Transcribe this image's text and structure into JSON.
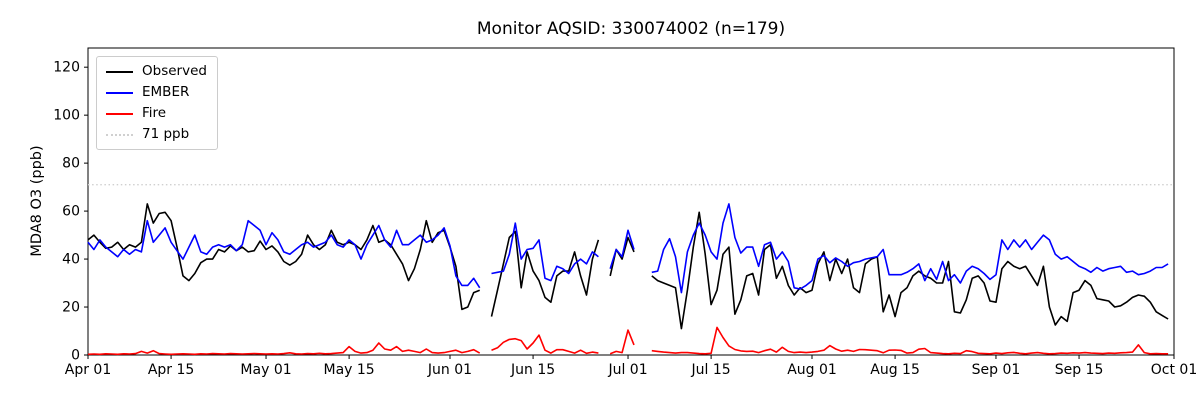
{
  "chart_data": {
    "type": "line",
    "title": "Monitor AQSID: 330074002 (n=179)",
    "xlabel": "",
    "ylabel": "MDA8 O3 (ppb)",
    "n_points": 179,
    "ylim": [
      0,
      128
    ],
    "yticks": [
      0,
      20,
      40,
      60,
      80,
      100,
      120
    ],
    "x_span_days": 183,
    "x_start": "Apr 01",
    "x_end": "Oct 01",
    "grid": false,
    "legend_position": "upper left",
    "xticks": [
      {
        "day": 0,
        "label": "Apr 01"
      },
      {
        "day": 14,
        "label": "Apr 15"
      },
      {
        "day": 30,
        "label": "May 01"
      },
      {
        "day": 44,
        "label": "May 15"
      },
      {
        "day": 61,
        "label": "Jun 01"
      },
      {
        "day": 75,
        "label": "Jun 15"
      },
      {
        "day": 91,
        "label": "Jul 01"
      },
      {
        "day": 105,
        "label": "Jul 15"
      },
      {
        "day": 122,
        "label": "Aug 01"
      },
      {
        "day": 136,
        "label": "Aug 15"
      },
      {
        "day": 153,
        "label": "Sep 01"
      },
      {
        "day": 167,
        "label": "Sep 15"
      },
      {
        "day": 183,
        "label": "Oct 01"
      }
    ],
    "threshold": {
      "value": 71,
      "label": "71 ppb",
      "color": "#d0d0d0",
      "style": "dotted"
    },
    "legend": [
      {
        "label": "Observed",
        "color": "#000000",
        "dash": false
      },
      {
        "label": "EMBER",
        "color": "#0000ff",
        "dash": false
      },
      {
        "label": "Fire",
        "color": "#ff0000",
        "dash": false
      },
      {
        "label": "71 ppb",
        "color": "#d0d0d0",
        "dash": true
      }
    ],
    "series": [
      {
        "name": "Observed",
        "color": "#000000",
        "values": [
          48,
          50,
          47,
          44.5,
          45,
          47,
          44,
          46,
          45,
          47,
          63,
          55,
          59,
          59.5,
          56,
          45,
          33,
          31,
          34,
          38.5,
          40,
          40,
          44,
          43,
          45.5,
          43.5,
          45,
          43,
          43.5,
          47.5,
          44,
          45.5,
          43,
          39,
          37.5,
          39,
          42,
          50,
          46,
          44,
          46,
          52,
          47,
          46,
          47,
          46,
          44,
          48,
          54,
          47,
          48,
          46,
          42,
          38,
          31,
          36,
          44,
          56,
          47,
          51,
          52,
          45,
          37,
          19,
          20,
          26,
          27,
          null,
          16,
          27,
          38,
          49,
          51.5,
          28,
          43,
          35,
          31,
          24,
          22,
          33,
          35,
          35,
          43,
          33,
          25,
          40,
          48,
          null,
          33,
          44,
          40,
          49,
          43,
          null,
          null,
          33,
          31,
          30,
          29,
          28,
          11,
          27,
          45,
          59.5,
          42,
          21,
          27,
          42,
          45,
          17,
          23,
          33,
          34,
          25,
          44,
          46,
          32,
          37,
          29,
          25,
          28,
          26,
          27,
          38,
          43,
          31,
          40,
          34,
          40,
          28,
          26,
          38,
          40,
          41,
          18,
          25,
          16,
          26,
          28,
          33,
          35,
          33,
          32,
          30,
          30,
          39,
          18,
          17.5,
          23,
          32,
          33,
          30,
          22.5,
          22,
          36,
          39,
          37,
          36,
          37,
          33,
          29,
          37,
          20,
          12.5,
          16,
          14,
          26,
          27,
          31,
          29,
          23.5,
          23,
          22.5,
          20,
          20.5,
          22,
          24,
          25,
          24.5,
          22,
          18,
          16.5,
          15
        ]
      },
      {
        "name": "EMBER",
        "color": "#0000ff",
        "values": [
          47,
          44,
          48,
          45,
          43,
          41,
          44,
          42,
          44,
          43,
          56,
          47,
          50,
          53,
          47,
          43.5,
          40,
          45,
          50,
          43,
          42,
          45,
          46,
          45,
          46,
          43.5,
          46,
          56,
          54,
          52,
          46,
          51,
          48,
          43,
          42,
          44,
          46,
          47,
          45,
          46,
          47,
          50,
          46,
          45,
          48,
          46,
          40,
          46,
          50,
          54,
          48,
          45,
          52,
          46,
          46,
          48,
          50,
          47,
          48,
          50,
          53,
          45.5,
          33,
          29,
          29,
          32,
          28,
          null,
          34,
          34.5,
          35,
          42,
          55,
          40,
          44,
          44.5,
          48,
          32,
          31,
          37,
          36,
          34,
          38,
          40,
          38,
          43,
          41,
          null,
          36,
          44,
          41,
          52,
          44,
          null,
          null,
          34.5,
          35,
          44,
          48.5,
          41,
          26,
          43,
          50,
          55,
          50,
          43,
          40,
          55,
          63,
          49,
          42.5,
          45,
          45,
          37,
          46,
          47,
          40,
          43,
          39,
          28,
          27.5,
          29,
          31,
          40,
          41.5,
          38.5,
          40.5,
          39,
          37,
          38.5,
          39,
          40,
          40.5,
          41,
          44,
          33.5,
          33.5,
          33.5,
          34.5,
          36,
          38,
          31,
          36,
          31.5,
          39,
          31,
          33.5,
          30,
          35,
          37,
          36,
          34,
          31.5,
          33.5,
          48,
          44,
          48,
          45,
          48,
          44,
          47,
          50,
          48,
          42,
          40,
          41,
          39,
          37,
          36,
          34.5,
          36.5,
          35,
          36,
          36.5,
          37,
          34.5,
          35,
          33.5,
          34,
          35,
          36.5,
          36.5,
          38
        ]
      },
      {
        "name": "Fire",
        "color": "#ff0000",
        "values": [
          0.3,
          0.4,
          0.3,
          0.5,
          0.4,
          0.3,
          0.5,
          0.4,
          0.6,
          1.5,
          0.8,
          1.8,
          0.6,
          0.4,
          0.3,
          0.4,
          0.5,
          0.4,
          0.3,
          0.5,
          0.4,
          0.6,
          0.5,
          0.4,
          0.6,
          0.5,
          0.4,
          0.5,
          0.6,
          0.5,
          0.4,
          0.5,
          0.4,
          0.6,
          0.9,
          0.5,
          0.4,
          0.6,
          0.5,
          0.7,
          0.5,
          0.6,
          0.8,
          1.0,
          3.5,
          1.5,
          0.8,
          1.0,
          2.0,
          5.0,
          2.5,
          2.0,
          3.5,
          1.5,
          2.0,
          1.5,
          1.0,
          2.5,
          1.0,
          0.8,
          1.0,
          1.5,
          2.0,
          1.0,
          1.5,
          2.2,
          0.8,
          null,
          2.0,
          3.0,
          5.3,
          6.5,
          6.8,
          6.0,
          2.5,
          5.0,
          8.3,
          2.0,
          0.8,
          2.2,
          2.2,
          1.5,
          0.8,
          2.0,
          0.7,
          1.2,
          0.8,
          null,
          0.5,
          1.5,
          1.0,
          10.4,
          4.2,
          null,
          null,
          1.8,
          1.5,
          1.2,
          1.0,
          0.8,
          1.0,
          1.0,
          0.8,
          0.6,
          0.5,
          0.7,
          11.5,
          7.3,
          3.8,
          2.3,
          1.7,
          1.5,
          1.6,
          1.0,
          1.8,
          2.4,
          1.2,
          3.2,
          1.5,
          1.0,
          1.2,
          1.0,
          1.2,
          1.5,
          2.0,
          3.9,
          2.5,
          1.6,
          2.0,
          1.5,
          2.3,
          2.2,
          2.0,
          1.8,
          0.9,
          2.0,
          2.1,
          1.9,
          0.8,
          1.0,
          2.4,
          2.7,
          1.0,
          0.8,
          0.6,
          0.5,
          0.7,
          0.6,
          1.8,
          1.4,
          0.7,
          0.6,
          0.5,
          0.8,
          0.6,
          0.9,
          1.1,
          0.7,
          0.5,
          0.8,
          1.0,
          0.7,
          0.5,
          0.6,
          0.8,
          0.7,
          0.9,
          0.8,
          1.0,
          0.8,
          0.7,
          0.6,
          0.8,
          0.7,
          0.9,
          1.0,
          1.2,
          4.2,
          1.0,
          0.5,
          0.6,
          0.5,
          0.5
        ]
      }
    ]
  }
}
